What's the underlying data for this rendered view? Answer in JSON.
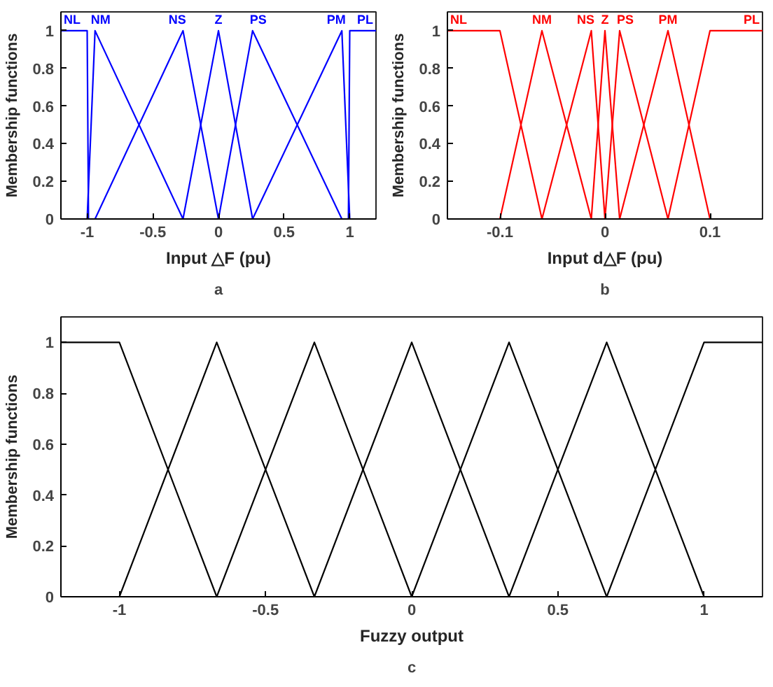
{
  "chart_data": [
    {
      "type": "line",
      "xlabel": "Input △F (pu)",
      "ylabel": "Membership functions",
      "annotations": [
        "a"
      ],
      "xlim": [
        -1.2,
        1.2
      ],
      "ylim": [
        0,
        1.1
      ],
      "xticks": [
        -1,
        -0.5,
        0,
        0.5,
        1
      ],
      "yticks": [
        0,
        0.2,
        0.4,
        0.6,
        0.8,
        1
      ],
      "grid": false,
      "legend": false,
      "series": [
        {
          "name": "NL",
          "color": "#0000ff",
          "x": [
            -1.2,
            -1.0,
            -0.99,
            1.2
          ],
          "values": [
            1,
            1,
            0,
            0
          ]
        },
        {
          "name": "NM",
          "color": "#0000ff",
          "x": [
            -1.2,
            -1.0,
            -0.94,
            -0.27,
            1.2
          ],
          "values": [
            0,
            0,
            1,
            0,
            0
          ]
        },
        {
          "name": "NS",
          "color": "#0000ff",
          "x": [
            -1.2,
            -0.94,
            -0.27,
            0,
            1.2
          ],
          "values": [
            0,
            0,
            1,
            0,
            0
          ]
        },
        {
          "name": "Z",
          "color": "#0000ff",
          "x": [
            -1.2,
            -0.27,
            0,
            0.26,
            1.2
          ],
          "values": [
            0,
            0,
            1,
            0,
            0
          ]
        },
        {
          "name": "PS",
          "color": "#0000ff",
          "x": [
            -1.2,
            0,
            0.26,
            0.94,
            1.2
          ],
          "values": [
            0,
            0,
            1,
            0,
            0
          ]
        },
        {
          "name": "PM",
          "color": "#0000ff",
          "x": [
            -1.2,
            0.26,
            0.94,
            1.0,
            1.2
          ],
          "values": [
            0,
            0,
            1,
            0,
            0
          ]
        },
        {
          "name": "PL",
          "color": "#0000ff",
          "x": [
            -1.2,
            0.99,
            1.0,
            1.2
          ],
          "values": [
            0,
            0,
            1,
            1
          ]
        }
      ]
    },
    {
      "type": "line",
      "xlabel": "Input d△F (pu)",
      "ylabel": "Membership functions",
      "annotations": [
        "b"
      ],
      "xlim": [
        -0.15,
        0.15
      ],
      "ylim": [
        0,
        1.1
      ],
      "xticks": [
        -0.1,
        0,
        0.1
      ],
      "yticks": [
        0,
        0.2,
        0.4,
        0.6,
        0.8,
        1
      ],
      "grid": false,
      "legend": false,
      "series": [
        {
          "name": "NL",
          "color": "#ff0000",
          "x": [
            -0.15,
            -0.1,
            -0.06,
            0.15
          ],
          "values": [
            1,
            1,
            0,
            0
          ]
        },
        {
          "name": "NM",
          "color": "#ff0000",
          "x": [
            -0.15,
            -0.1,
            -0.06,
            -0.013,
            0.15
          ],
          "values": [
            0,
            0,
            1,
            0,
            0
          ]
        },
        {
          "name": "NS",
          "color": "#ff0000",
          "x": [
            -0.15,
            -0.06,
            -0.013,
            0,
            0.15
          ],
          "values": [
            0,
            0,
            1,
            0,
            0
          ]
        },
        {
          "name": "Z",
          "color": "#ff0000",
          "x": [
            -0.15,
            -0.013,
            0,
            0.014,
            0.15
          ],
          "values": [
            0,
            0,
            1,
            0,
            0
          ]
        },
        {
          "name": "PS",
          "color": "#ff0000",
          "x": [
            -0.15,
            0,
            0.014,
            0.06,
            0.15
          ],
          "values": [
            0,
            0,
            1,
            0,
            0
          ]
        },
        {
          "name": "PM",
          "color": "#ff0000",
          "x": [
            -0.15,
            0.014,
            0.06,
            0.1,
            0.15
          ],
          "values": [
            0,
            0,
            1,
            0,
            0
          ]
        },
        {
          "name": "PL",
          "color": "#ff0000",
          "x": [
            -0.15,
            0.06,
            0.1,
            0.15
          ],
          "values": [
            0,
            0,
            1,
            1
          ]
        }
      ]
    },
    {
      "type": "line",
      "xlabel": "Fuzzy output",
      "ylabel": "Membership functions",
      "annotations": [
        "c"
      ],
      "xlim": [
        -1.2,
        1.2
      ],
      "ylim": [
        0,
        1.1
      ],
      "xticks": [
        -1,
        -0.5,
        0,
        0.5,
        1
      ],
      "yticks": [
        0,
        0.2,
        0.4,
        0.6,
        0.8,
        1
      ],
      "grid": false,
      "legend": false,
      "series": [
        {
          "color": "#000000",
          "x": [
            -1.2,
            -1.0,
            -0.667,
            1.2
          ],
          "values": [
            1,
            1,
            0,
            0
          ]
        },
        {
          "color": "#000000",
          "x": [
            -1.2,
            -1.0,
            -0.667,
            -0.333,
            1.2
          ],
          "values": [
            0,
            0,
            1,
            0,
            0
          ]
        },
        {
          "color": "#000000",
          "x": [
            -1.2,
            -0.667,
            -0.333,
            0,
            1.2
          ],
          "values": [
            0,
            0,
            1,
            0,
            0
          ]
        },
        {
          "color": "#000000",
          "x": [
            -1.2,
            -0.333,
            0,
            0.333,
            1.2
          ],
          "values": [
            0,
            0,
            1,
            0,
            0
          ]
        },
        {
          "color": "#000000",
          "x": [
            -1.2,
            0,
            0.333,
            0.667,
            1.2
          ],
          "values": [
            0,
            0,
            1,
            0,
            0
          ]
        },
        {
          "color": "#000000",
          "x": [
            -1.2,
            0.333,
            0.667,
            1.0,
            1.2
          ],
          "values": [
            0,
            0,
            1,
            0,
            0
          ]
        },
        {
          "color": "#000000",
          "x": [
            -1.2,
            0.667,
            1.0,
            1.2
          ],
          "values": [
            0,
            0,
            1,
            1
          ]
        }
      ]
    }
  ]
}
